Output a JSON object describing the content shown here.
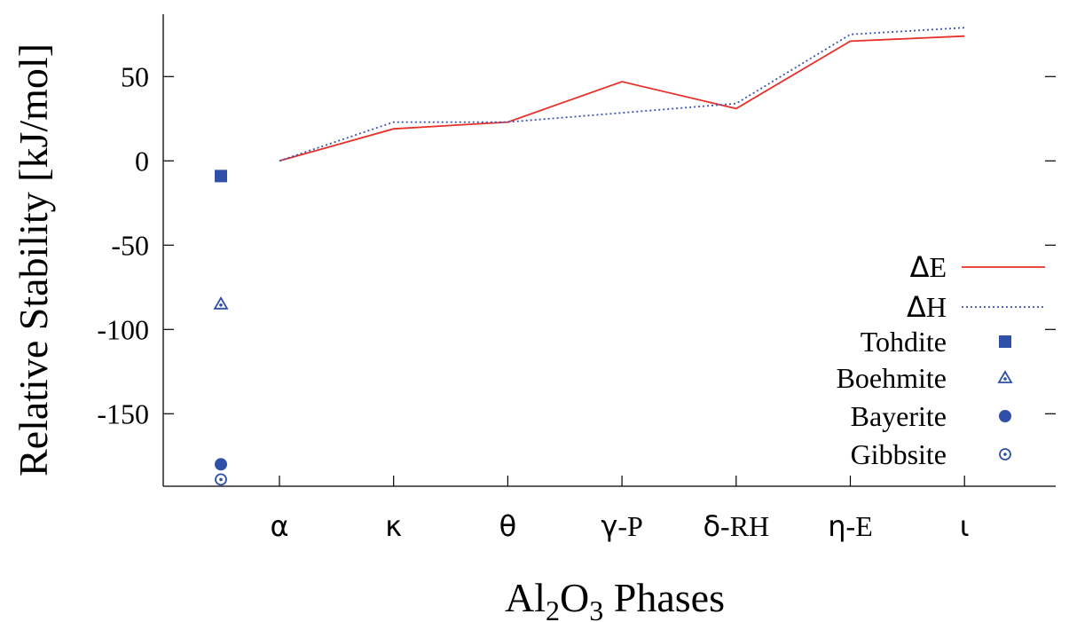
{
  "chart_data": {
    "type": "line",
    "ylabel": "Relative Stability [kJ/mol]",
    "xlabel": "Al2O3 Phases",
    "xlabel_parts": {
      "base1": "Al",
      "sub1": "2",
      "base2": "O",
      "sub2": "3",
      "rest": " Phases"
    },
    "ylim": [
      -193,
      87
    ],
    "yticks": [
      50,
      0,
      -50,
      -100,
      -150
    ],
    "yticklabels": [
      "50",
      "0",
      "-50",
      "-100",
      "-150"
    ],
    "categories": [
      {
        "greek": "α",
        "suffix": ""
      },
      {
        "greek": "κ",
        "suffix": ""
      },
      {
        "greek": "θ",
        "suffix": ""
      },
      {
        "greek": "γ",
        "suffix": "-P"
      },
      {
        "greek": "δ",
        "suffix": "-RH"
      },
      {
        "greek": "η",
        "suffix": "-E"
      },
      {
        "greek": "ι",
        "suffix": ""
      }
    ],
    "line_series": [
      {
        "name": "ΔE",
        "name_parts": [
          "Δ",
          "E"
        ],
        "color": "#e8302a",
        "style": "solid",
        "x_index": [
          0,
          1,
          2,
          3,
          4,
          5,
          6
        ],
        "values": [
          0,
          19,
          23,
          47,
          31,
          71,
          74
        ]
      },
      {
        "name": "ΔH",
        "name_parts": [
          "Δ",
          "H"
        ],
        "color": "#3a55b0",
        "style": "dotted",
        "x_index": [
          0,
          1,
          2,
          4,
          5,
          6
        ],
        "values": [
          0,
          23,
          23,
          34,
          75,
          79
        ]
      }
    ],
    "point_series": [
      {
        "name": "Tohdite",
        "marker": "filled-square",
        "color": "#2f4fa8",
        "value": -9
      },
      {
        "name": "Boehmite",
        "marker": "dotted-triangle",
        "color": "#2f4fa8",
        "value": -85
      },
      {
        "name": "Bayerite",
        "marker": "filled-circle",
        "color": "#2f4fa8",
        "value": -180
      },
      {
        "name": "Gibbsite",
        "marker": "dotted-circle",
        "color": "#2f4fa8",
        "value": -189
      }
    ],
    "grid": false,
    "legend_position": "bottom-right",
    "axis_color": "#000000"
  }
}
